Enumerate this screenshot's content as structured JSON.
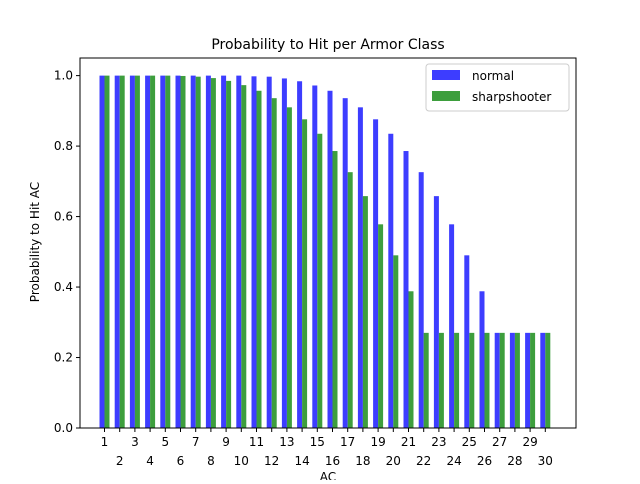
{
  "chart_data": {
    "type": "bar",
    "title": "Probability to Hit per Armor Class",
    "xlabel": "AC",
    "ylabel": "Probability to Hit AC",
    "categories": [
      "1",
      "2",
      "3",
      "4",
      "5",
      "6",
      "7",
      "8",
      "9",
      "10",
      "11",
      "12",
      "13",
      "14",
      "15",
      "16",
      "17",
      "18",
      "19",
      "20",
      "21",
      "22",
      "23",
      "24",
      "25",
      "26",
      "27",
      "28",
      "29",
      "30"
    ],
    "ylim": [
      0,
      1.05
    ],
    "yticks": [
      "0.0",
      "0.2",
      "0.4",
      "0.6",
      "0.8",
      "1.0"
    ],
    "grid": false,
    "legend_position": "top-right",
    "series": [
      {
        "name": "normal",
        "color": "#3333ff",
        "values": [
          1.0,
          1.0,
          1.0,
          1.0,
          1.0,
          1.0,
          1.0,
          1.0,
          1.0,
          1.0,
          0.998,
          0.997,
          0.992,
          0.984,
          0.972,
          0.957,
          0.936,
          0.91,
          0.876,
          0.835,
          0.786,
          0.726,
          0.658,
          0.578,
          0.49,
          0.388,
          0.27,
          0.27,
          0.27,
          0.27
        ]
      },
      {
        "name": "sharpshooter",
        "color": "#339933",
        "values": [
          1.0,
          1.0,
          1.0,
          1.0,
          1.0,
          0.999,
          0.997,
          0.993,
          0.985,
          0.973,
          0.957,
          0.936,
          0.91,
          0.876,
          0.835,
          0.786,
          0.726,
          0.658,
          0.578,
          0.49,
          0.388,
          0.27,
          0.27,
          0.27,
          0.27,
          0.27,
          0.27,
          0.27,
          0.27,
          0.27
        ]
      }
    ]
  }
}
